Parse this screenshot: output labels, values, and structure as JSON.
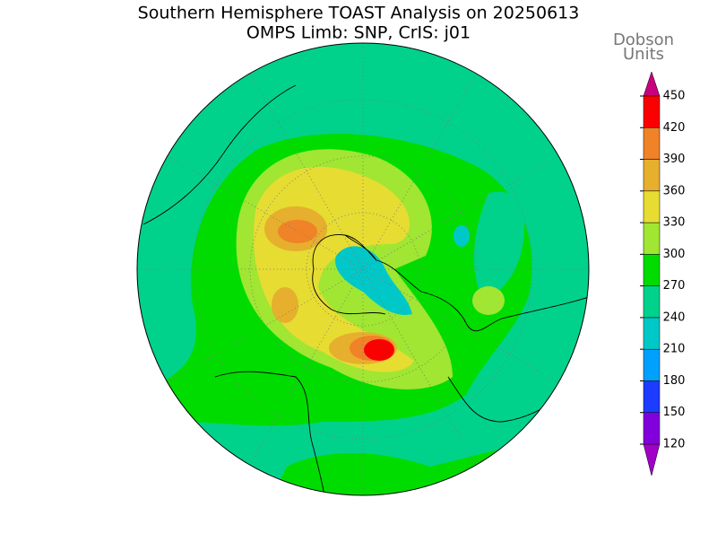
{
  "title": [
    "Southern Hemisphere TOAST Analysis on 20250613",
    "OMPS Limb: SNP, CrIS: j01"
  ],
  "colorbar": {
    "label": [
      "Dobson",
      "Units"
    ],
    "levels": [
      120,
      150,
      180,
      210,
      240,
      270,
      300,
      330,
      360,
      390,
      420,
      450
    ],
    "colors": [
      "#a000c8",
      "#8200dc",
      "#1e3cff",
      "#00a0ff",
      "#00c8c8",
      "#00d28c",
      "#00dc00",
      "#a0e632",
      "#e6dc32",
      "#e6af2d",
      "#f08228",
      "#fa0000",
      "#c8007f"
    ]
  }
}
